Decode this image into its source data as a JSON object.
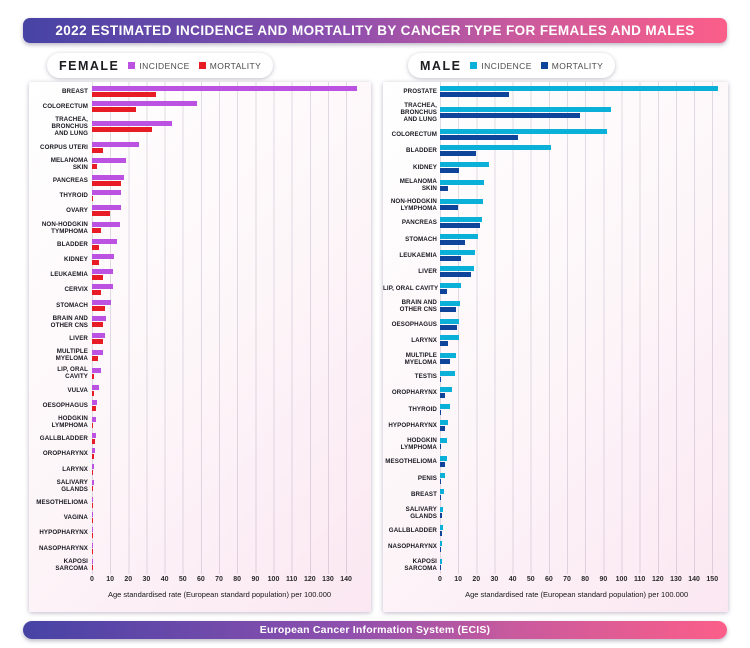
{
  "title": "2022 ESTIMATED INCIDENCE AND MORTALITY BY CANCER TYPE FOR FEMALES AND MALES",
  "footer": "European Cancer Information System (ECIS)",
  "colors": {
    "banner_gradient_left": "#4643a5",
    "banner_gradient_right": "#fb5e89",
    "female_incidence": "#bc52e2",
    "female_mortality": "#e71c24",
    "male_incidence": "#0bb0d8",
    "male_mortality": "#0e4499",
    "panel_background_tint": "#fbe7f1"
  },
  "legends": [
    {
      "title": "FEMALE",
      "items": [
        {
          "label": "INCIDENCE",
          "color": "#bc52e2"
        },
        {
          "label": "MORTALITY",
          "color": "#e71c24"
        }
      ]
    },
    {
      "title": "MALE",
      "items": [
        {
          "label": "INCIDENCE",
          "color": "#0bb0d8"
        },
        {
          "label": "MORTALITY",
          "color": "#0e4499"
        }
      ]
    }
  ],
  "chart_data": [
    {
      "type": "bar",
      "orientation": "horizontal",
      "group": "FEMALE",
      "xlabel": "Age standardised rate (European standard population) per 100.000",
      "x_tick_min": 0,
      "x_tick_max": 140,
      "x_tick_step": 10,
      "xlim": [
        0,
        152
      ],
      "grid": true,
      "categories": [
        "BREAST",
        "COLORECTUM",
        "TRACHEA,\nBRONCHUS\nAND LUNG",
        "CORPUS UTERI",
        "MELANOMA\nSKIN",
        "PANCREAS",
        "THYROID",
        "OVARY",
        "NON-HODGKIN\nTYMPHOMA",
        "BLADDER",
        "KIDNEY",
        "LEUKAEMIA",
        "CERVIX",
        "STOMACH",
        "BRAIN AND\nOTHER CNS",
        "LIVER",
        "MULTIPLE\nMYELOMA",
        "LIP, ORAL\nCAVITY",
        "VULVA",
        "OESOPHAGUS",
        "HODGKIN\nLYMPHOMA",
        "GALLBLADDER",
        "OROPHARYNX",
        "LARYNX",
        "SALIVARY\nGLANDS",
        "MESOTHELIOMA",
        "VAGINA",
        "HYPOPHARYNX",
        "NASOPHARYNX",
        "KAPOSI\nSARCOMA"
      ],
      "series": [
        {
          "name": "INCIDENCE",
          "color": "#bc52e2",
          "values": [
            146,
            58,
            44,
            26,
            19,
            17.5,
            16,
            15.8,
            15.3,
            14,
            12.3,
            11.7,
            11.4,
            10.6,
            7.5,
            7,
            6,
            5,
            4,
            2.5,
            2.3,
            2.2,
            1.8,
            1.3,
            0.9,
            0.7,
            0.7,
            0.5,
            0.4,
            0.3
          ]
        },
        {
          "name": "MORTALITY",
          "color": "#e71c24",
          "values": [
            35,
            24,
            33,
            6,
            2.5,
            16,
            0.8,
            10,
            5,
            4,
            4,
            6,
            5,
            7,
            6,
            6,
            3.5,
            1,
            1,
            2,
            0.3,
            1.5,
            1,
            0.7,
            0.4,
            0.6,
            0.3,
            0.3,
            0.3,
            0.1
          ]
        }
      ]
    },
    {
      "type": "bar",
      "orientation": "horizontal",
      "group": "MALE",
      "xlabel": "Age standardised rate (European standard population) per 100.000",
      "x_tick_min": 0,
      "x_tick_max": 150,
      "x_tick_step": 10,
      "xlim": [
        0,
        163
      ],
      "grid": true,
      "categories": [
        "PROSTATE",
        "TRACHEA,\nBRONCHUS\nAND LUNG",
        "COLORECTUM",
        "BLADDER",
        "KIDNEY",
        "MELANOMA\nSKIN",
        "NON-HODGKIN\nLYMPHOMA",
        "PANCREAS",
        "STOMACH",
        "LEUKAEMIA",
        "LIVER",
        "LIP, ORAL CAVITY",
        "BRAIN AND\nOTHER CNS",
        "OESOPHAGUS",
        "LARYNX",
        "MULTIPLE\nMYELOMA",
        "TESTIS",
        "OROPHARYNX",
        "THYROID",
        "HYPOPHARYNX",
        "HODGKIN\nLYMPHOMA",
        "MESOTHELIOMA",
        "PENIS",
        "BREAST",
        "SALIVARY\nGLANDS",
        "GALLBLADDER",
        "NASOPHARYNX",
        "KAPOSI\nSARCOMA"
      ],
      "series": [
        {
          "name": "INCIDENCE",
          "color": "#0bb0d8",
          "values": [
            153,
            94,
            92,
            61,
            27,
            24,
            23.5,
            23,
            21,
            19.3,
            19,
            11.4,
            11,
            10.4,
            10.2,
            8.8,
            8,
            6.4,
            5.3,
            4.2,
            3.8,
            3.7,
            2.7,
            2.2,
            1.8,
            1.5,
            1.3,
            1.1
          ]
        },
        {
          "name": "MORTALITY",
          "color": "#0e4499",
          "values": [
            38,
            77,
            43,
            20,
            10.5,
            4.6,
            9.7,
            22,
            14,
            11.7,
            17,
            4,
            9,
            9.3,
            4.4,
            5.7,
            0.4,
            2.7,
            0.4,
            2.9,
            0.5,
            2.7,
            0.5,
            0.7,
            0.9,
            0.9,
            0.7,
            0.4
          ]
        }
      ]
    }
  ]
}
